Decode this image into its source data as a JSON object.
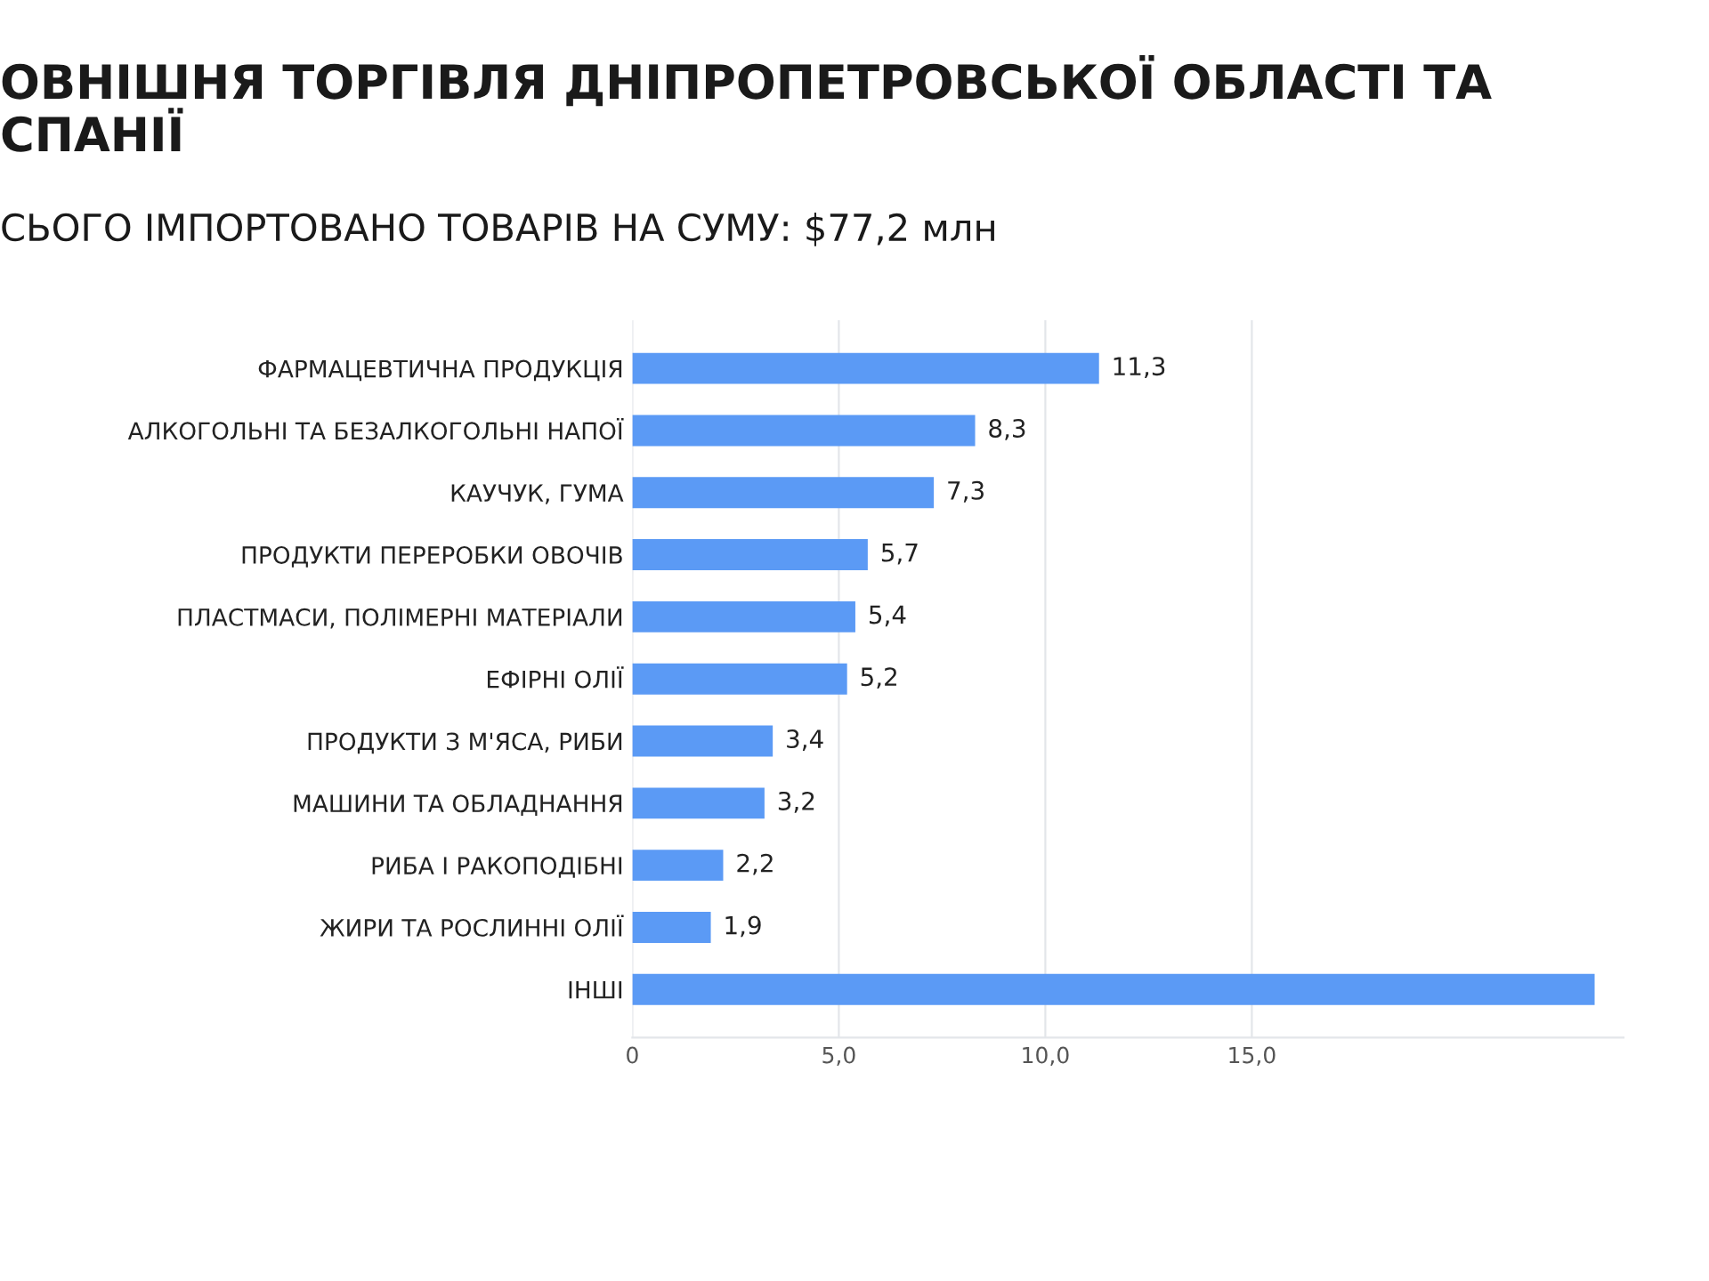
{
  "chart_data": {
    "type": "bar",
    "orientation": "horizontal",
    "title": "ОВНІШНЯ ТОРГІВЛЯ ДНІПРОПЕТРОВСЬКОЇ ОБЛАСТІ ТА\nСПАНІЇ",
    "subtitle": "СЬОГО ІМПОРТОВАНО ТОВАРІВ НА СУМУ: $77,2 млн",
    "categories": [
      "ФАРМАЦЕВТИЧНА ПРОДУКЦІЯ",
      "АЛКОГОЛЬНІ ТА БЕЗАЛКОГОЛЬНІ НАПОЇ",
      "КАУЧУК, ГУМА",
      "ПРОДУКТИ ПЕРЕРОБКИ ОВОЧІВ",
      "ПЛАСТМАСИ, ПОЛІМЕРНІ МАТЕРІАЛИ",
      "ЕФІРНІ ОЛІЇ",
      "ПРОДУКТИ З М'ЯСА, РИБИ",
      "МАШИНИ ТА ОБЛАДНАННЯ",
      "РИБА І РАКОПОДІБНІ",
      "ЖИРИ ТА РОСЛИННІ ОЛІЇ",
      "ІНШІ"
    ],
    "values": [
      11.3,
      8.3,
      7.3,
      5.7,
      5.4,
      5.2,
      3.4,
      3.2,
      2.2,
      1.9,
      23.3
    ],
    "value_labels": [
      "11,3",
      "8,3",
      "7,3",
      "5,7",
      "5,4",
      "5,2",
      "3,4",
      "3,2",
      "2,2",
      "1,9",
      null
    ],
    "color": "#5b9af5",
    "xlim": [
      0,
      24
    ],
    "xticks": [
      0,
      {
        "value": 5,
        "label": "5,0"
      },
      {
        "value": 10,
        "label": "10,0"
      },
      {
        "value": 15,
        "label": "15,0"
      }
    ],
    "grid": "x"
  }
}
